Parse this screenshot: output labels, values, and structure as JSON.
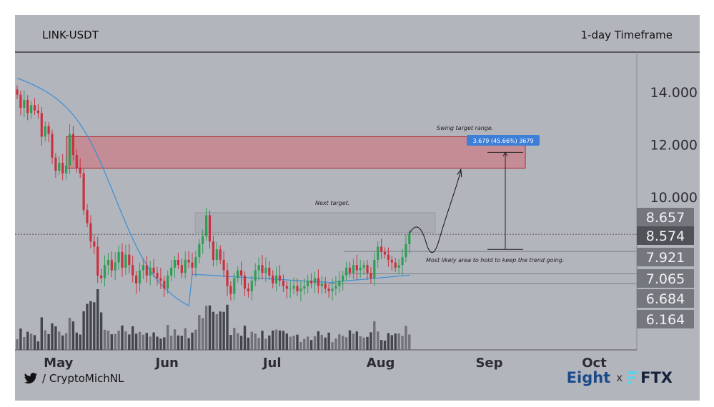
{
  "header": {
    "pair": "LINK-USDT",
    "timeframe": "1-day Timeframe"
  },
  "footer": {
    "handle": "/ CryptoMichNL",
    "brand_left": "Eight",
    "brand_sep": "x",
    "brand_right": "FTX"
  },
  "colors": {
    "background": "#b3b5bd",
    "bull": "#2f9e55",
    "bear": "#c8323e",
    "ma": "#3a8fd6",
    "zone_fill": "#c98088",
    "zone_border": "#b0242f",
    "next_zone": "#a8aab2",
    "volume": "#55575e",
    "price_box": "#75777f",
    "current_box": "#505258"
  },
  "icons": {
    "handle_icon": "twitter-bird-icon",
    "brand_icon": "ftx-logo-icon"
  },
  "chart_data": {
    "type": "candlestick",
    "x_ticks": [
      "May",
      "Jun",
      "Jul",
      "Aug",
      "Sep",
      "Oct"
    ],
    "y_ticks": [
      14,
      12,
      10
    ],
    "ylim": [
      5.5,
      15
    ],
    "price_labels": [
      {
        "value": 8.657,
        "label": "8.657"
      },
      {
        "value": 8.574,
        "label": "8.574",
        "current": true
      },
      {
        "value": 7.921,
        "label": "7.921"
      },
      {
        "value": 7.065,
        "label": "7.065"
      },
      {
        "value": 6.684,
        "label": "6.684"
      },
      {
        "value": 6.164,
        "label": "6.164"
      }
    ],
    "annotations": {
      "swing_target": "Swing target range.",
      "measure": "3.679 (45.66%) 3679",
      "next_target": "Next target.",
      "hold_area": "Most likely area to hold to keep the trend going."
    },
    "zones": {
      "swing_target": {
        "low": 11.1,
        "high": 12.3,
        "start": "May 4",
        "end": "Sep 13"
      },
      "next_target": {
        "low": 8.65,
        "high": 9.4,
        "start": "Jun 10",
        "end": "Aug 18"
      }
    },
    "support_levels": [
      7.921,
      7.065,
      6.684
    ],
    "close": [
      13.9,
      13.4,
      13.7,
      13.2,
      13.5,
      13.3,
      13.2,
      12.3,
      12.7,
      12.4,
      11.5,
      11.0,
      11.3,
      10.9,
      11.2,
      12.4,
      11.6,
      11.1,
      10.9,
      9.5,
      9.0,
      8.3,
      8.1,
      7.0,
      6.9,
      7.4,
      7.6,
      7.2,
      7.5,
      7.9,
      7.3,
      7.8,
      7.4,
      7.0,
      6.7,
      7.2,
      7.4,
      7.0,
      7.3,
      7.1,
      6.9,
      6.8,
      6.5,
      7.0,
      7.3,
      7.6,
      7.4,
      7.1,
      7.6,
      7.5,
      7.3,
      7.7,
      8.2,
      8.5,
      9.3,
      8.3,
      7.6,
      8.0,
      7.6,
      7.2,
      6.6,
      6.3,
      6.9,
      7.2,
      7.0,
      6.5,
      6.4,
      6.8,
      7.2,
      7.4,
      7.1,
      7.3,
      7.0,
      6.7,
      7.0,
      6.8,
      6.6,
      6.5,
      6.5,
      6.6,
      6.4,
      6.5,
      6.6,
      6.8,
      6.7,
      6.9,
      6.6,
      6.7,
      6.5,
      6.4,
      6.5,
      6.6,
      6.8,
      7.0,
      7.3,
      7.1,
      7.4,
      7.2,
      7.3,
      7.4,
      7.1,
      6.9,
      7.6,
      8.1,
      7.9,
      7.8,
      7.6,
      7.5,
      7.3,
      7.4,
      7.7,
      8.2,
      8.6
    ]
  }
}
